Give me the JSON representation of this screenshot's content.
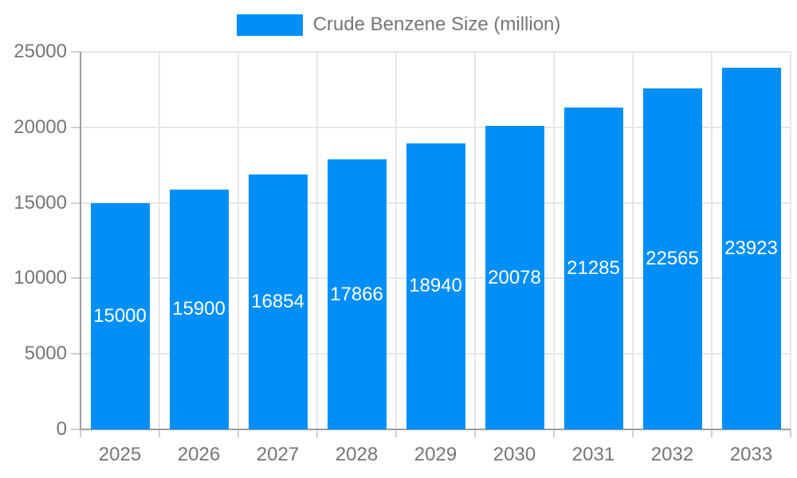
{
  "chart_data": {
    "type": "bar",
    "title": "",
    "legend": {
      "label": "Crude Benzene Size (million)",
      "position": "top"
    },
    "categories": [
      "2025",
      "2026",
      "2027",
      "2028",
      "2029",
      "2030",
      "2031",
      "2032",
      "2033"
    ],
    "series": [
      {
        "name": "Crude Benzene Size (million)",
        "values": [
          15000,
          15900,
          16854,
          17866,
          18940,
          20078,
          21285,
          22565,
          23923
        ]
      }
    ],
    "value_labels": [
      "15000",
      "15900",
      "16854",
      "17866",
      "18940",
      "20078",
      "21285",
      "22565",
      "23923"
    ],
    "ylim": [
      0,
      25000
    ],
    "yticks": [
      0,
      5000,
      10000,
      15000,
      20000,
      25000
    ],
    "grid": {
      "horizontal": true,
      "vertical": true
    },
    "colors": {
      "bar": "#008FF8",
      "grid": "#e6e6e6",
      "axis": "#9e9e9e",
      "tick": "#cfcfcf",
      "label": "#757575",
      "value_label": "#ffffff",
      "background": "#ffffff"
    }
  }
}
